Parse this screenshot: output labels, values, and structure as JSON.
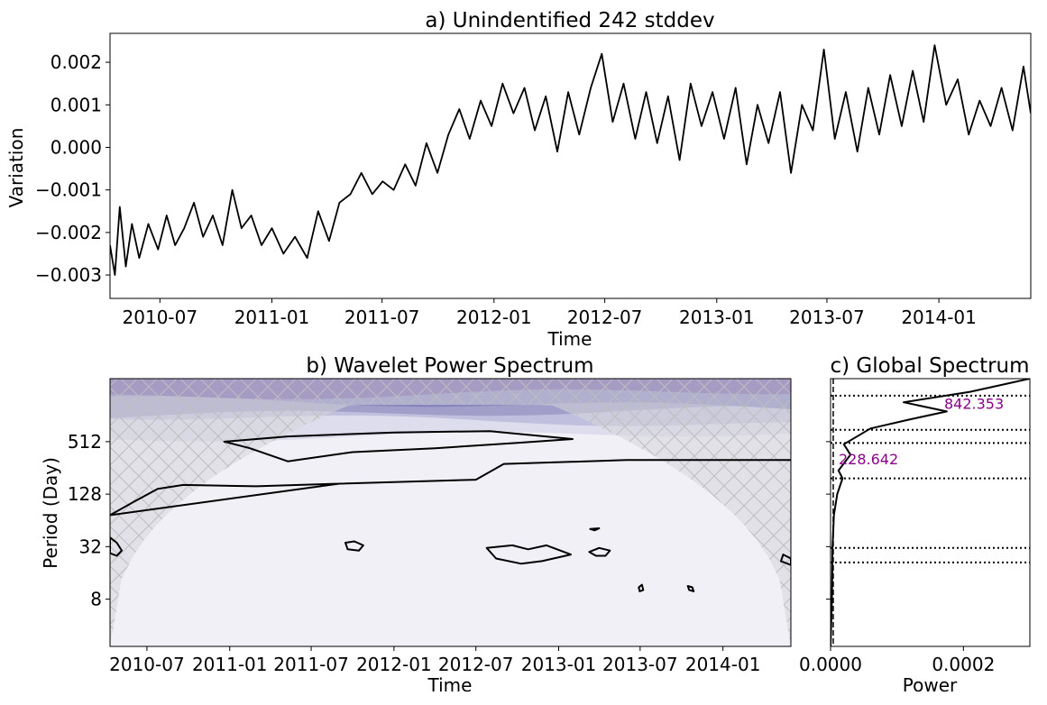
{
  "colors": {
    "line": "#000000",
    "peak_label": "#8b008b",
    "power_levels": [
      "#f2f0f7",
      "#dadaeb",
      "#bcbddc",
      "#9e9ac8",
      "#807dba",
      "#6a51a3"
    ],
    "coi_fill": "#d6d6da"
  },
  "chart_data": [
    {
      "id": "a",
      "type": "line",
      "title": "a) Unindentified 242 stddev",
      "xlabel": "Time",
      "ylabel": "Variation",
      "xlim": [
        "2010-04-10",
        "2014-06-01"
      ],
      "ylim": [
        -0.00355,
        0.00268
      ],
      "x_ticks": [
        "2010-07-01",
        "2011-01-01",
        "2011-07-01",
        "2012-01-01",
        "2012-07-01",
        "2013-01-01",
        "2013-07-01",
        "2014-01-01"
      ],
      "x_tick_labels": [
        "2010-07",
        "2011-01",
        "2011-07",
        "2012-01",
        "2012-07",
        "2013-01",
        "2013-07",
        "2014-01"
      ],
      "y_ticks": [
        0.002,
        0.001,
        0.0,
        -0.001,
        -0.002,
        -0.003
      ],
      "y_tick_labels": [
        "0.002",
        "0.001",
        "0.000",
        "−0.001",
        "−0.002",
        "−0.003"
      ],
      "series": [
        {
          "points": [
            [
              "2010-04-10",
              -0.0023
            ],
            [
              "2010-04-18",
              -0.003
            ],
            [
              "2010-04-26",
              -0.0014
            ],
            [
              "2010-05-06",
              -0.0028
            ],
            [
              "2010-05-16",
              -0.0018
            ],
            [
              "2010-05-28",
              -0.0026
            ],
            [
              "2010-06-12",
              -0.0018
            ],
            [
              "2010-06-28",
              -0.0024
            ],
            [
              "2010-07-12",
              -0.0016
            ],
            [
              "2010-07-26",
              -0.0023
            ],
            [
              "2010-08-10",
              -0.0019
            ],
            [
              "2010-08-26",
              -0.0013
            ],
            [
              "2010-09-10",
              -0.0021
            ],
            [
              "2010-09-26",
              -0.0016
            ],
            [
              "2010-10-12",
              -0.0023
            ],
            [
              "2010-10-28",
              -0.001
            ],
            [
              "2010-11-12",
              -0.0019
            ],
            [
              "2010-11-28",
              -0.0016
            ],
            [
              "2010-12-15",
              -0.0023
            ],
            [
              "2011-01-01",
              -0.0019
            ],
            [
              "2011-01-20",
              -0.0025
            ],
            [
              "2011-02-08",
              -0.0021
            ],
            [
              "2011-02-28",
              -0.0026
            ],
            [
              "2011-03-18",
              -0.0015
            ],
            [
              "2011-04-05",
              -0.0022
            ],
            [
              "2011-04-22",
              -0.0013
            ],
            [
              "2011-05-10",
              -0.0011
            ],
            [
              "2011-05-28",
              -0.0006
            ],
            [
              "2011-06-15",
              -0.0011
            ],
            [
              "2011-07-02",
              -0.0008
            ],
            [
              "2011-07-20",
              -0.001
            ],
            [
              "2011-08-08",
              -0.0004
            ],
            [
              "2011-08-25",
              -0.0009
            ],
            [
              "2011-09-12",
              0.0001
            ],
            [
              "2011-09-30",
              -0.0006
            ],
            [
              "2011-10-18",
              0.0003
            ],
            [
              "2011-11-05",
              0.0009
            ],
            [
              "2011-11-22",
              0.0002
            ],
            [
              "2011-12-10",
              0.0011
            ],
            [
              "2011-12-28",
              0.0005
            ],
            [
              "2012-01-15",
              0.0015
            ],
            [
              "2012-02-02",
              0.0008
            ],
            [
              "2012-02-20",
              0.0014
            ],
            [
              "2012-03-08",
              0.0004
            ],
            [
              "2012-03-26",
              0.0012
            ],
            [
              "2012-04-14",
              -0.0001
            ],
            [
              "2012-05-02",
              0.0013
            ],
            [
              "2012-05-20",
              0.0003
            ],
            [
              "2012-06-08",
              0.0014
            ],
            [
              "2012-06-26",
              0.0022
            ],
            [
              "2012-07-14",
              0.0006
            ],
            [
              "2012-08-01",
              0.0015
            ],
            [
              "2012-08-20",
              0.0002
            ],
            [
              "2012-09-07",
              0.0013
            ],
            [
              "2012-09-25",
              0.0001
            ],
            [
              "2012-10-13",
              0.0012
            ],
            [
              "2012-11-01",
              -0.0003
            ],
            [
              "2012-11-19",
              0.0015
            ],
            [
              "2012-12-07",
              0.0005
            ],
            [
              "2012-12-25",
              0.0013
            ],
            [
              "2013-01-13",
              0.0002
            ],
            [
              "2013-02-01",
              0.0014
            ],
            [
              "2013-02-19",
              -0.0004
            ],
            [
              "2013-03-09",
              0.001
            ],
            [
              "2013-03-27",
              0.0001
            ],
            [
              "2013-04-15",
              0.0013
            ],
            [
              "2013-05-03",
              -0.0006
            ],
            [
              "2013-05-21",
              0.001
            ],
            [
              "2013-06-08",
              0.0004
            ],
            [
              "2013-06-26",
              0.0023
            ],
            [
              "2013-07-14",
              0.0002
            ],
            [
              "2013-08-01",
              0.0013
            ],
            [
              "2013-08-20",
              -0.0001
            ],
            [
              "2013-09-07",
              0.0014
            ],
            [
              "2013-09-25",
              0.0003
            ],
            [
              "2013-10-13",
              0.0017
            ],
            [
              "2013-11-01",
              0.0005
            ],
            [
              "2013-11-19",
              0.0018
            ],
            [
              "2013-12-07",
              0.0006
            ],
            [
              "2013-12-25",
              0.0024
            ],
            [
              "2014-01-13",
              0.001
            ],
            [
              "2014-02-01",
              0.0016
            ],
            [
              "2014-02-19",
              0.0003
            ],
            [
              "2014-03-09",
              0.0011
            ],
            [
              "2014-03-27",
              0.0005
            ],
            [
              "2014-04-14",
              0.0014
            ],
            [
              "2014-05-02",
              0.0004
            ],
            [
              "2014-05-20",
              0.0019
            ],
            [
              "2014-06-01",
              0.0008
            ]
          ]
        }
      ]
    },
    {
      "id": "b",
      "type": "heatmap",
      "title": "b) Wavelet Power Spectrum",
      "xlabel": "Time",
      "ylabel": "Period (Day)",
      "xlim": [
        "2010-04-10",
        "2014-06-01"
      ],
      "ylim_period_log2": [
        1.2,
        11.4
      ],
      "x_ticks": [
        "2010-07-01",
        "2011-01-01",
        "2011-07-01",
        "2012-01-01",
        "2012-07-01",
        "2013-01-01",
        "2013-07-01",
        "2014-01-01"
      ],
      "x_tick_labels": [
        "2010-07",
        "2011-01",
        "2011-07",
        "2012-01",
        "2012-07",
        "2013-01",
        "2013-07",
        "2014-01"
      ],
      "y_ticks": [
        512,
        128,
        32,
        8
      ],
      "y_tick_labels": [
        "512",
        "128",
        "32",
        "8"
      ],
      "power_bands_max_period_by_level": [
        600,
        900,
        1100,
        1400,
        1800
      ],
      "significance_regions": [
        {
          "points": [
            [
              "2010-12-20",
              9.0
            ],
            [
              "2011-05-10",
              9.2
            ],
            [
              "2012-01-01",
              9.35
            ],
            [
              "2012-08-01",
              9.4
            ],
            [
              "2013-02-01",
              9.1
            ],
            [
              "2012-10-01",
              8.95
            ],
            [
              "2012-04-01",
              8.75
            ],
            [
              "2011-10-01",
              8.6
            ],
            [
              "2011-05-10",
              8.25
            ],
            [
              "2011-02-15",
              8.75
            ]
          ]
        },
        {
          "points": [
            [
              "2010-04-10",
              6.2
            ],
            [
              "2010-06-01",
              6.7
            ],
            [
              "2010-07-25",
              7.2
            ],
            [
              "2010-09-20",
              7.35
            ],
            [
              "2011-03-01",
              7.3
            ],
            [
              "2011-09-01",
              7.4
            ],
            [
              "2012-07-01",
              7.55
            ],
            [
              "2012-09-01",
              8.15
            ],
            [
              "2013-06-01",
              8.3
            ],
            [
              "2014-06-01",
              8.3
            ],
            [
              "2014-06-01",
              8.3
            ],
            [
              "2013-06-01",
              8.3
            ],
            [
              "2012-09-01",
              8.15
            ],
            [
              "2012-07-01",
              7.55
            ],
            [
              "2011-09-01",
              7.4
            ]
          ]
        },
        {
          "points": [
            [
              "2010-04-10",
              5.35
            ],
            [
              "2010-04-25",
              5.15
            ],
            [
              "2010-05-06",
              4.85
            ],
            [
              "2010-04-25",
              4.65
            ],
            [
              "2010-04-10",
              4.75
            ]
          ]
        },
        {
          "points": [
            [
              "2011-09-15",
              5.15
            ],
            [
              "2011-10-05",
              5.2
            ],
            [
              "2011-10-25",
              5.05
            ],
            [
              "2011-10-15",
              4.85
            ],
            [
              "2011-09-20",
              4.9
            ]
          ]
        },
        {
          "points": [
            [
              "2012-07-25",
              4.95
            ],
            [
              "2012-09-20",
              5.05
            ],
            [
              "2012-10-25",
              4.9
            ],
            [
              "2012-12-05",
              5.05
            ],
            [
              "2013-01-28",
              4.7
            ],
            [
              "2012-11-25",
              4.45
            ],
            [
              "2012-10-10",
              4.35
            ],
            [
              "2012-08-15",
              4.55
            ]
          ]
        },
        {
          "points": [
            [
              "2013-03-10",
              4.8
            ],
            [
              "2013-04-01",
              4.95
            ],
            [
              "2013-04-25",
              4.85
            ],
            [
              "2013-04-15",
              4.65
            ],
            [
              "2013-03-25",
              4.65
            ]
          ]
        },
        {
          "points": [
            [
              "2013-03-12",
              5.67
            ],
            [
              "2013-04-01",
              5.7
            ],
            [
              "2013-03-22",
              5.62
            ]
          ]
        },
        {
          "points": [
            [
              "2013-06-28",
              3.45
            ],
            [
              "2013-07-05",
              3.55
            ],
            [
              "2013-07-08",
              3.35
            ],
            [
              "2013-06-30",
              3.3
            ]
          ]
        },
        {
          "points": [
            [
              "2013-10-15",
              3.5
            ],
            [
              "2013-10-25",
              3.45
            ],
            [
              "2013-10-28",
              3.3
            ],
            [
              "2013-10-18",
              3.35
            ]
          ]
        },
        {
          "points": [
            [
              "2014-06-01",
              4.55
            ],
            [
              "2014-05-15",
              4.7
            ],
            [
              "2014-05-10",
              4.45
            ],
            [
              "2014-06-01",
              4.3
            ]
          ]
        }
      ]
    },
    {
      "id": "c",
      "type": "line",
      "title": "c) Global Spectrum",
      "xlabel": "Power",
      "xlim": [
        0,
        0.0003
      ],
      "x_ticks": [
        0,
        0.0002
      ],
      "x_tick_labels": [
        "0.0000",
        "0.0002"
      ],
      "power_curve": [
        [
          0.0,
          1.2
        ],
        [
          2e-06,
          3.0
        ],
        [
          3e-06,
          5.0
        ],
        [
          5e-06,
          6.2
        ],
        [
          1e-05,
          7.0
        ],
        [
          1.8e-05,
          7.6
        ],
        [
          1.2e-05,
          7.9
        ],
        [
          3e-05,
          8.5
        ],
        [
          2e-05,
          8.9
        ],
        [
          6e-05,
          9.5
        ],
        [
          0.00012,
          9.85
        ],
        [
          0.000175,
          10.15
        ],
        [
          0.00011,
          10.5
        ],
        [
          0.00021,
          10.9
        ],
        [
          0.0003,
          11.4
        ]
      ],
      "significance_line_power": 4e-06,
      "dotted_period_levels_log2": [
        10.75,
        9.45,
        8.95,
        7.6,
        4.95,
        4.4
      ],
      "peaks": [
        {
          "label": "842.353",
          "period_log2": 10.45
        },
        {
          "label": "228.642",
          "period_log2": 8.35
        }
      ]
    }
  ]
}
